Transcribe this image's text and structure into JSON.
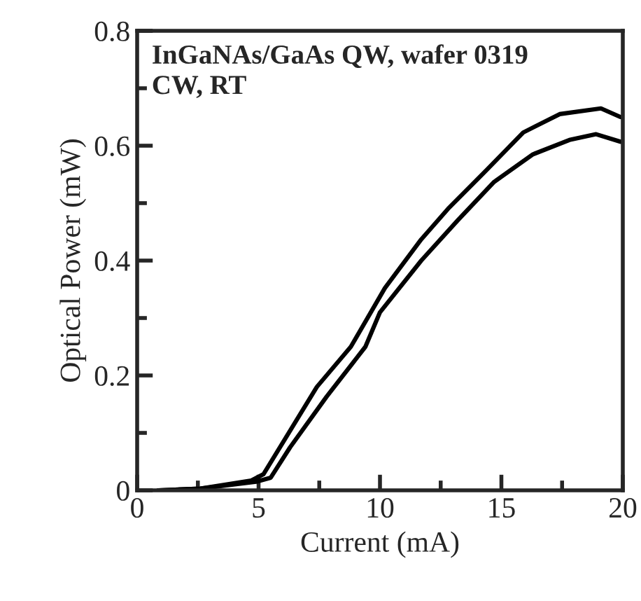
{
  "chart_data": {
    "type": "line",
    "xlabel": "Current (mA)",
    "ylabel": "Optical Power (mW)",
    "annotations": [
      "InGaNAs/GaAs QW, wafer 0319\nCW, RT"
    ],
    "xlim": [
      0,
      20
    ],
    "xticks": [
      0,
      5,
      10,
      15,
      20
    ],
    "ylim": [
      0,
      0.8
    ],
    "yticks": [
      0,
      0.2,
      0.4,
      0.6,
      0.8
    ],
    "marker": "none",
    "line_style": "solid",
    "series": [
      {
        "color": "#000000",
        "x": [
          0.87,
          2.6,
          4.7,
          5.2,
          6.1,
          7.4,
          8.8,
          10.2,
          11.7,
          12.8,
          14.4,
          15.9,
          17.4,
          19.1,
          19.9
        ],
        "values": [
          0,
          0.003,
          0.017,
          0.028,
          0.09,
          0.18,
          0.25,
          0.352,
          0.437,
          0.49,
          0.558,
          0.623,
          0.655,
          0.665,
          0.65
        ]
      },
      {
        "color": "#000000",
        "x": [
          0.87,
          2.6,
          4.9,
          5.5,
          6.3,
          7.8,
          9.4,
          10.0,
          11.7,
          13.2,
          14.7,
          16.3,
          17.8,
          18.9,
          19.9
        ],
        "values": [
          0,
          0.003,
          0.015,
          0.022,
          0.075,
          0.163,
          0.25,
          0.31,
          0.4,
          0.47,
          0.537,
          0.585,
          0.61,
          0.62,
          0.607
        ]
      }
    ]
  }
}
